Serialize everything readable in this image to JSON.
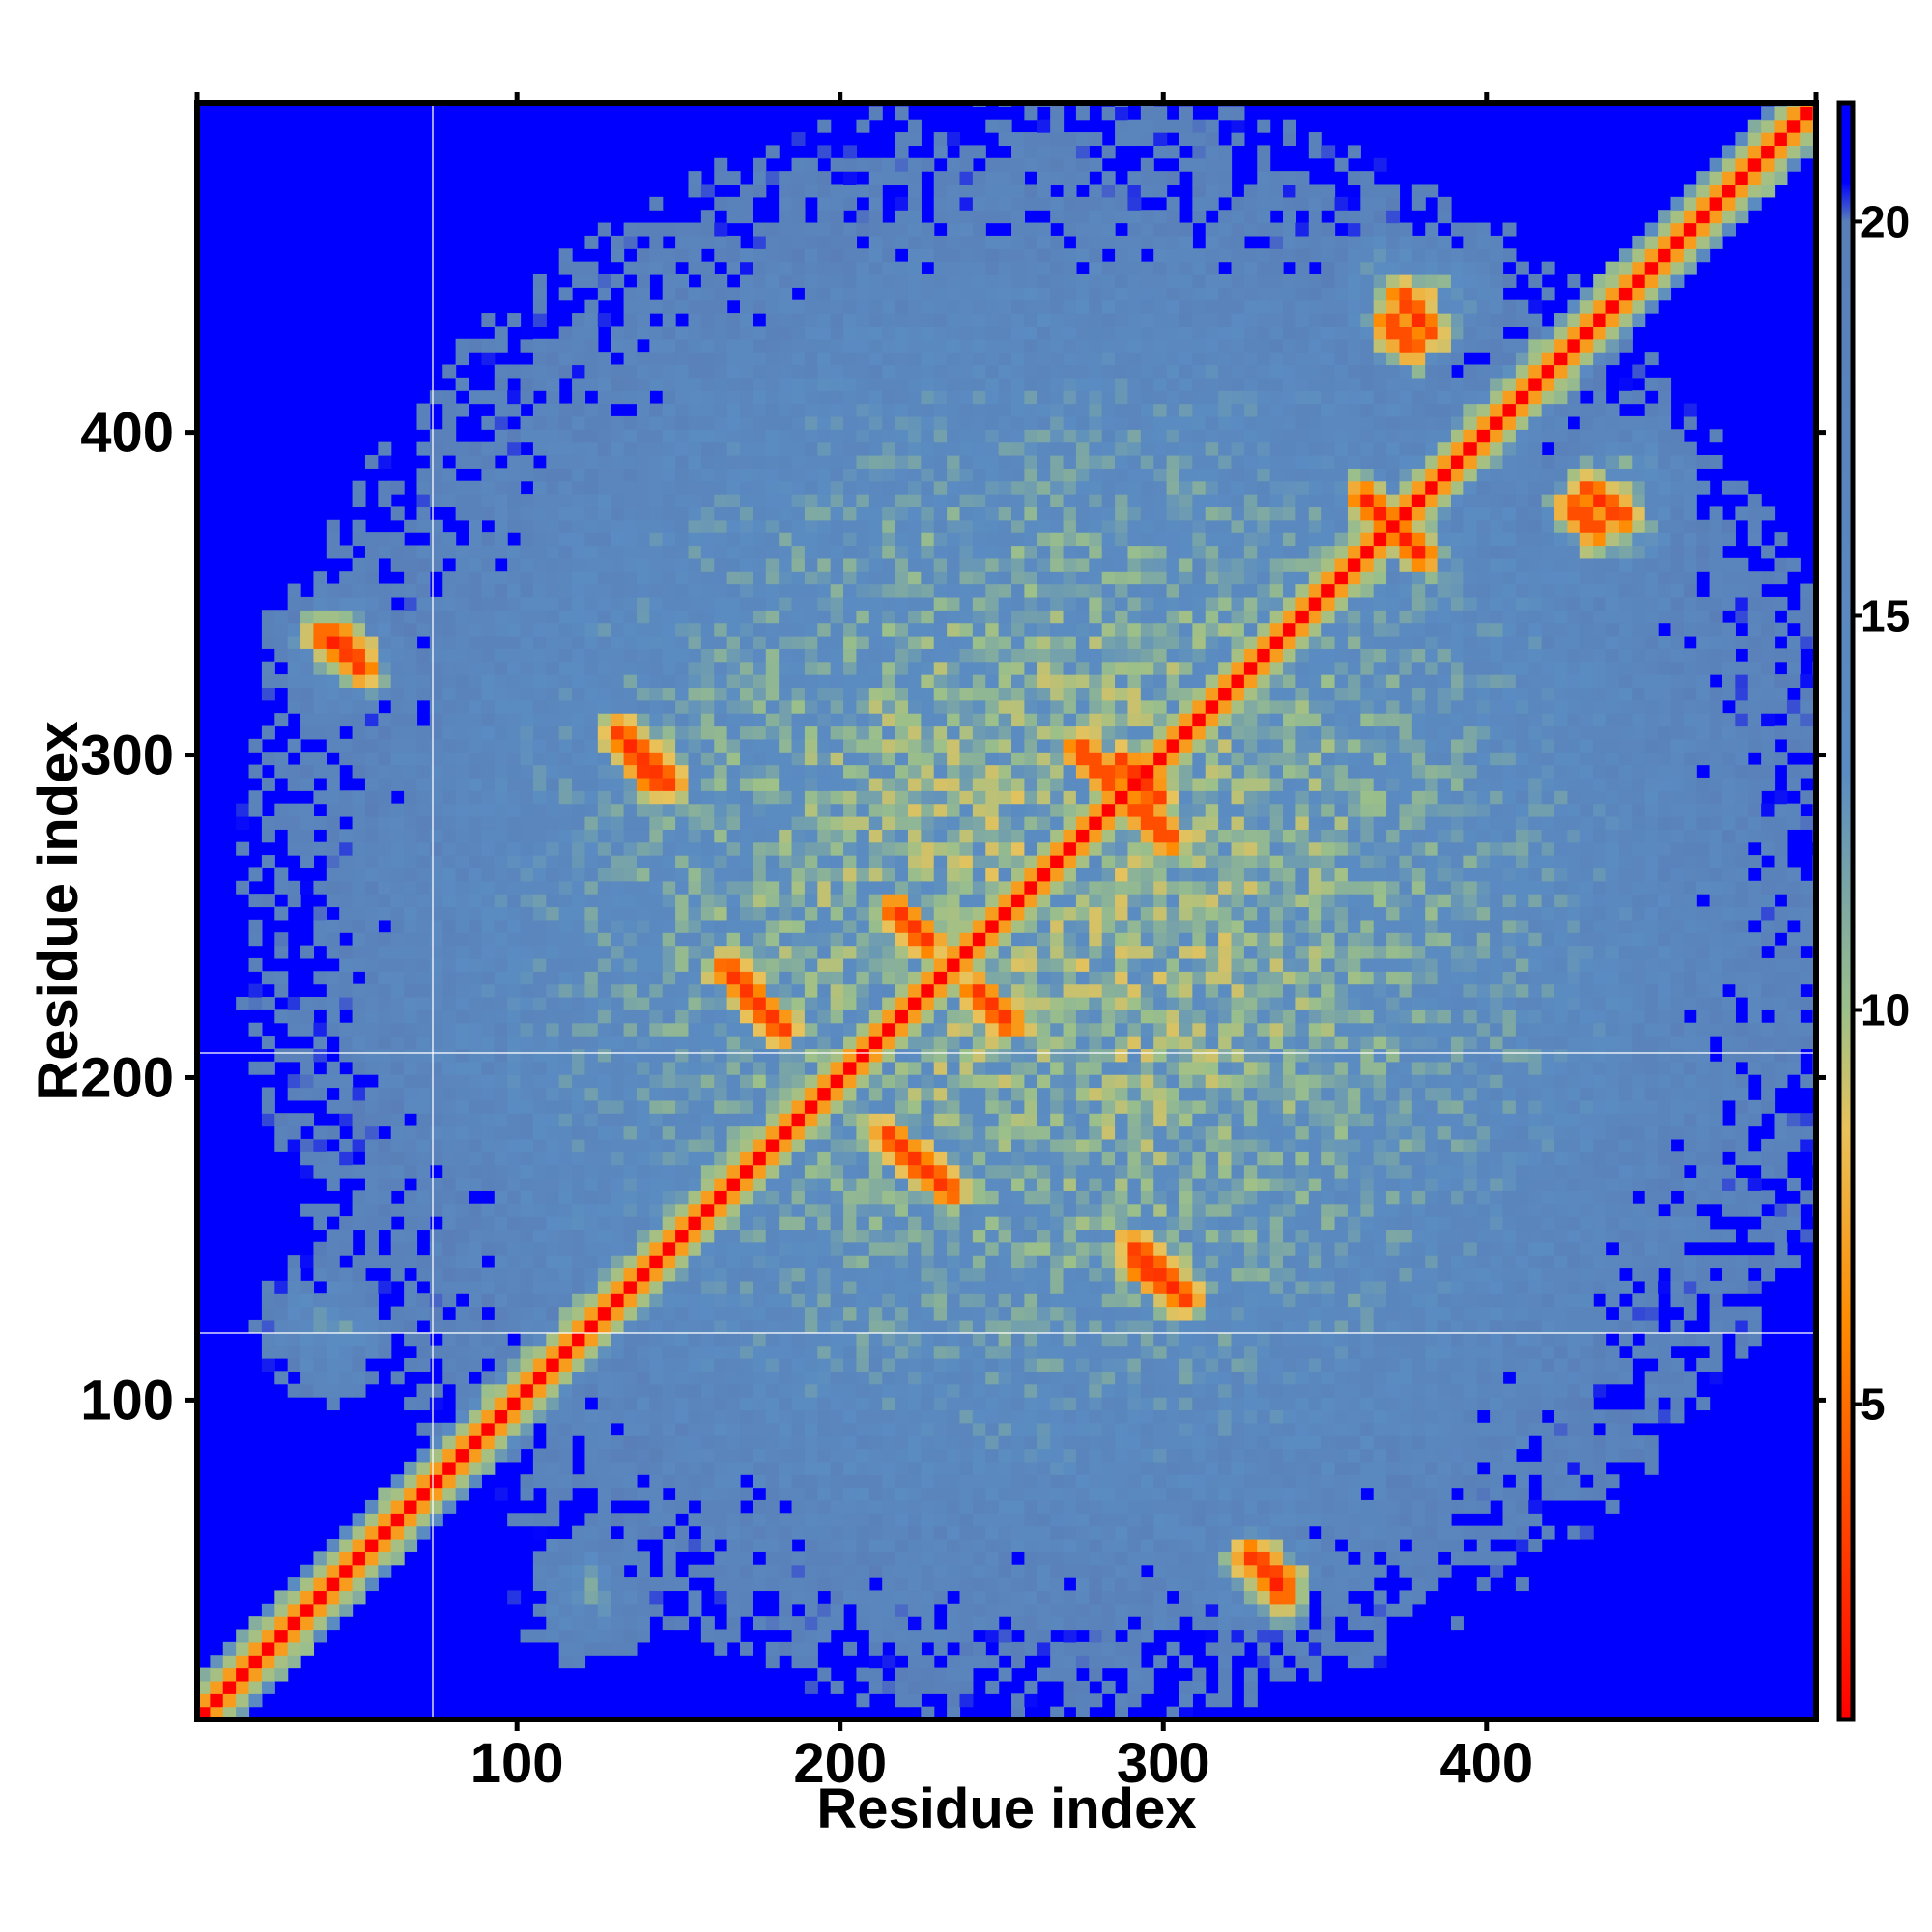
{
  "chart_data": {
    "type": "heatmap",
    "title": "",
    "xlabel": "Residue index",
    "ylabel": "Residue index",
    "xlim": [
      1,
      502
    ],
    "ylim": [
      1,
      502
    ],
    "x_ticks": [
      100,
      200,
      300,
      400
    ],
    "y_ticks": [
      100,
      200,
      300,
      400
    ],
    "colorbar": {
      "range": [
        1,
        21.5
      ],
      "ticks": [
        5,
        10,
        15,
        20
      ],
      "colormap": [
        {
          "value": 1,
          "color": "#ff0000"
        },
        {
          "value": 6,
          "color": "#ff8a00"
        },
        {
          "value": 8.5,
          "color": "#e8c25a"
        },
        {
          "value": 10,
          "color": "#9cc08a"
        },
        {
          "value": 13,
          "color": "#5a8cc2"
        },
        {
          "value": 20,
          "color": "#5a7fb8"
        },
        {
          "value": 20.5,
          "color": "#0000ff"
        }
      ]
    },
    "description_values": {
      "diagonal_value": 1,
      "background_value": 21.5
    },
    "contact_segments": [
      {
        "from": [
          135,
          300
        ],
        "to": [
          145,
          290
        ]
      },
      {
        "from": [
          285,
          296
        ],
        "to": [
          295,
          286
        ]
      },
      {
        "from": [
          290,
          282
        ],
        "to": [
          300,
          272
        ]
      },
      {
        "from": [
          170,
          223
        ],
        "to": [
          180,
          213
        ]
      },
      {
        "from": [
          290,
          140
        ],
        "to": [
          305,
          130
        ]
      },
      {
        "from": [
          225,
          170
        ],
        "to": [
          232,
          163
        ]
      },
      {
        "from": [
          360,
          378
        ],
        "to": [
          370,
          368
        ]
      },
      {
        "from": [
          368,
          432
        ],
        "to": [
          375,
          425
        ]
      },
      {
        "from": [
          430,
          380
        ],
        "to": [
          440,
          372
        ]
      },
      {
        "from": [
          325,
          50
        ],
        "to": [
          335,
          42
        ]
      },
      {
        "from": [
          38,
          335
        ],
        "to": [
          48,
          328
        ]
      },
      {
        "from": [
          215,
          250
        ],
        "to": [
          225,
          240
        ]
      }
    ],
    "contact_hotspots": [
      {
        "x": 145,
        "y": 295,
        "value": 10
      },
      {
        "x": 290,
        "y": 285,
        "value": 9
      },
      {
        "x": 235,
        "y": 245,
        "value": 10
      },
      {
        "x": 180,
        "y": 180,
        "value": 10
      },
      {
        "x": 255,
        "y": 170,
        "value": 11
      },
      {
        "x": 300,
        "y": 140,
        "value": 10
      },
      {
        "x": 370,
        "y": 440,
        "value": 10
      },
      {
        "x": 440,
        "y": 380,
        "value": 10
      },
      {
        "x": 45,
        "y": 330,
        "value": 11
      },
      {
        "x": 40,
        "y": 120,
        "value": 12
      },
      {
        "x": 120,
        "y": 40,
        "value": 12
      },
      {
        "x": 330,
        "y": 45,
        "value": 11
      },
      {
        "x": 365,
        "y": 225,
        "value": 11
      },
      {
        "x": 225,
        "y": 365,
        "value": 11
      },
      {
        "x": 335,
        "y": 260,
        "value": 12
      },
      {
        "x": 260,
        "y": 335,
        "value": 12
      }
    ],
    "grid": false,
    "legend": "colorbar-right"
  }
}
